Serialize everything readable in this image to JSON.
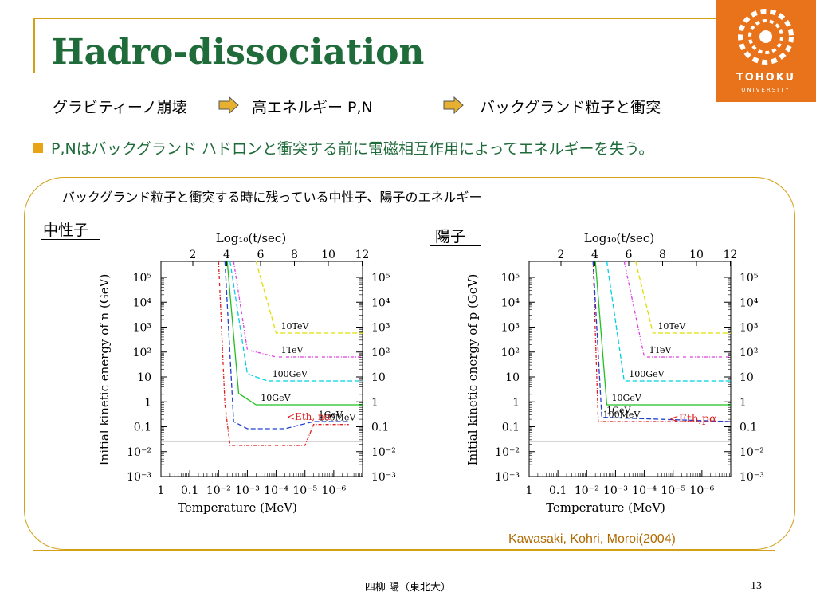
{
  "slide": {
    "title": "Hadro-dissociation",
    "flow": [
      "グラビティーノ崩壊",
      "高エネルギー P,N",
      "バックグランド粒子と衝突"
    ],
    "bullet": "P,Nはバックグランド ハドロンと衝突する前に電磁相互作用によってエネルギーを失う。",
    "caption": "バックグランド粒子と衝突する時に残っている中性子、陽子のエネルギー",
    "citation": "Kawasaki, Kohri, Moroi(2004)",
    "footer_author": "四柳 陽（東北大）",
    "page_number": "13"
  },
  "logo": {
    "name": "TOHOKU",
    "sub": "UNIVERSITY",
    "color": "#e8731a"
  },
  "colors": {
    "title": "#1f6b3a",
    "accent": "#d4a017",
    "bullet": "#e8a317",
    "citation": "#b06a00"
  },
  "charts": {
    "ylabel_ticks": [
      "10⁻³",
      "10⁻²",
      "0.1",
      "1",
      "10",
      "10²",
      "10³",
      "10⁴",
      "10⁵"
    ],
    "xlabel_ticks": [
      "1",
      "0.1",
      "10⁻²",
      "10⁻³",
      "10⁻⁴",
      "10⁻⁵",
      "10⁻⁶"
    ],
    "top_ticks": [
      "2",
      "4",
      "6",
      "8",
      "10",
      "12"
    ],
    "top_axis_label": "Log₁₀(t/sec)",
    "xlabel": "Temperature (MeV)"
  },
  "chart_data": [
    {
      "type": "line",
      "panel_label": "中性子",
      "ylabel": "Initial kinetic energy of n (GeV)",
      "xlabel": "Temperature (MeV)",
      "x_scale": "log-reversed",
      "y_scale": "log",
      "xlim": [
        10,
        1e-06
      ],
      "ylim": [
        0.001,
        1000000.0
      ],
      "threshold_label": "<Eth, nα",
      "series": [
        {
          "name": "100MeV",
          "color": "#e02020",
          "x": [
            0.1,
            0.06,
            0.04,
            0.01,
            0.0001,
            5e-05,
            3e-06
          ],
          "y": [
            1000000.0,
            1,
            0.02,
            0.02,
            0.02,
            0.15,
            0.15
          ]
        },
        {
          "name": "1GeV",
          "color": "#2040d0",
          "x": [
            0.06,
            0.03,
            0.01,
            0.0005,
            5e-05,
            3e-06
          ],
          "y": [
            1000000.0,
            0.2,
            0.1,
            0.1,
            0.2,
            0.2
          ]
        },
        {
          "name": "10GeV",
          "color": "#20c020",
          "x": [
            0.05,
            0.02,
            0.005,
            1e-06
          ],
          "y": [
            1000000.0,
            3,
            1,
            1
          ]
        },
        {
          "name": "100GeV",
          "color": "#00d0e0",
          "x": [
            0.04,
            0.01,
            0.002,
            1e-06
          ],
          "y": [
            1000000.0,
            20,
            10,
            10
          ]
        },
        {
          "name": "1TeV",
          "color": "#e040e0",
          "x": [
            0.03,
            0.01,
            0.001,
            1e-06
          ],
          "y": [
            1000000.0,
            200,
            100,
            100
          ]
        },
        {
          "name": "10TeV",
          "color": "#e0e000",
          "x": [
            0.005,
            0.001,
            1e-06
          ],
          "y": [
            1000000.0,
            1000,
            1000
          ]
        }
      ]
    },
    {
      "type": "line",
      "panel_label": "陽子",
      "ylabel": "Initial kinetic energy of p (GeV)",
      "xlabel": "Temperature (MeV)",
      "x_scale": "log-reversed",
      "y_scale": "log",
      "xlim": [
        10,
        1e-06
      ],
      "ylim": [
        0.001,
        1000000.0
      ],
      "threshold_label": "<Eth,pα",
      "series": [
        {
          "name": "100MeV",
          "color": "#e02020",
          "x": [
            0.06,
            0.04,
            1e-06
          ],
          "y": [
            1000000.0,
            0.2,
            0.2
          ]
        },
        {
          "name": "1GeV",
          "color": "#2040d0",
          "x": [
            0.06,
            0.03,
            1e-06
          ],
          "y": [
            1000000.0,
            0.3,
            0.2
          ]
        },
        {
          "name": "10GeV",
          "color": "#20c020",
          "x": [
            0.05,
            0.02,
            1e-06
          ],
          "y": [
            1000000.0,
            1,
            1
          ]
        },
        {
          "name": "100GeV",
          "color": "#00d0e0",
          "x": [
            0.02,
            0.005,
            1e-06
          ],
          "y": [
            1000000.0,
            10,
            10
          ]
        },
        {
          "name": "1TeV",
          "color": "#e040e0",
          "x": [
            0.005,
            0.001,
            1e-06
          ],
          "y": [
            1000000.0,
            100,
            100
          ]
        },
        {
          "name": "10TeV",
          "color": "#e0e000",
          "x": [
            0.002,
            0.0005,
            1e-06
          ],
          "y": [
            1000000.0,
            1000,
            1000
          ]
        }
      ]
    }
  ]
}
